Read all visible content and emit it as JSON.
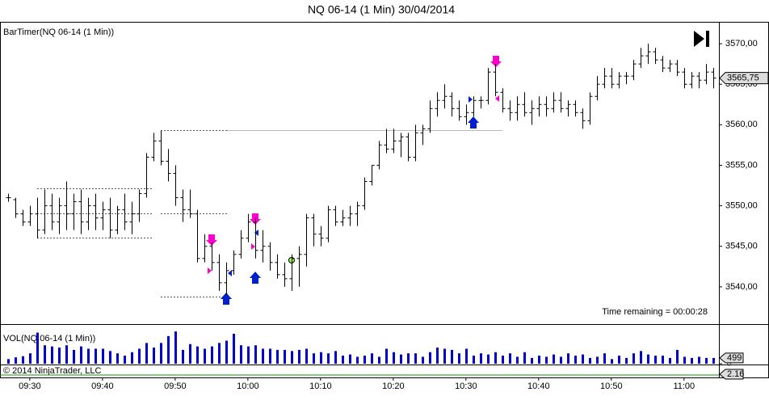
{
  "chart_data": {
    "type": "ohlc",
    "title": "NQ 06-14 (1 Min)  30/04/2014",
    "indicator_title": "BarTimer(NQ 06-14 (1 Min))",
    "annotation": "Time remaining = 00:00:28",
    "volume_title": "VOL(NQ 06-14 (1 Min))",
    "copyright": "© 2014 NinjaTrader, LLC",
    "x": [
      567,
      568,
      569,
      570,
      571,
      572,
      573,
      574,
      575,
      576,
      577,
      578,
      579,
      580,
      581,
      582,
      583,
      584,
      585,
      586,
      587,
      588,
      589,
      590,
      591,
      592,
      593,
      594,
      595,
      596,
      597,
      598,
      599,
      600,
      601,
      602,
      603,
      604,
      605,
      606,
      607,
      608,
      609,
      610,
      611,
      612,
      613,
      614,
      615,
      616,
      617,
      618,
      619,
      620,
      621,
      622,
      623,
      624,
      625,
      626,
      627,
      628,
      629,
      630,
      631,
      632,
      633,
      634,
      635,
      636,
      637,
      638,
      639,
      640,
      641,
      642,
      643,
      644,
      645,
      646,
      647,
      648,
      649,
      650,
      651,
      652,
      653,
      654,
      655,
      656,
      657,
      658,
      659,
      660,
      661,
      662,
      663,
      664
    ],
    "open": [
      3551,
      3550.75,
      3549,
      3548,
      3549,
      3547,
      3550,
      3548,
      3550,
      3549,
      3550.5,
      3548,
      3550,
      3548.5,
      3549.5,
      3547,
      3549.5,
      3548,
      3549,
      3551.5,
      3556,
      3558,
      3555.5,
      3554,
      3551,
      3549.5,
      3549,
      3543.5,
      3545,
      3543,
      3540.5,
      3542,
      3544,
      3546,
      3548,
      3544.5,
      3545,
      3543,
      3541.5,
      3541,
      3543.5,
      3544,
      3548.5,
      3546.5,
      3546,
      3549.5,
      3548,
      3548.5,
      3549,
      3550,
      3553,
      3555,
      3557.5,
      3557,
      3558,
      3558.5,
      3556,
      3559,
      3559.5,
      3562,
      3563,
      3563.5,
      3562,
      3561,
      3561.5,
      3563,
      3563,
      3566.5,
      3564,
      3562,
      3561.5,
      3562.5,
      3561.5,
      3562,
      3562.5,
      3562,
      3563,
      3562,
      3562.5,
      3561.5,
      3560.5,
      3563.5,
      3565,
      3566,
      3565,
      3566,
      3566,
      3567.5,
      3568.5,
      3569,
      3568,
      3567,
      3567.5,
      3566.5,
      3565,
      3566,
      3565.5,
      3566.5
    ],
    "high": [
      3551.5,
      3551,
      3549.5,
      3550,
      3551,
      3552,
      3551.5,
      3551,
      3553,
      3551.5,
      3552,
      3551,
      3551.5,
      3550.5,
      3551,
      3550,
      3551.5,
      3550.5,
      3552,
      3556.5,
      3559,
      3559.25,
      3557,
      3555,
      3552,
      3552,
      3549.5,
      3546.5,
      3545.5,
      3544,
      3543,
      3544.5,
      3547,
      3549,
      3548.5,
      3547,
      3545.5,
      3544,
      3543,
      3544,
      3545,
      3549,
      3549,
      3547.5,
      3550,
      3550,
      3549.5,
      3550,
      3550.5,
      3553.5,
      3555,
      3558,
      3559.5,
      3559.5,
      3559,
      3559,
      3560,
      3560,
      3563,
      3564,
      3565,
      3564,
      3563,
      3562.5,
      3563.5,
      3563.5,
      3567,
      3567.5,
      3564.5,
      3563,
      3563.5,
      3564,
      3563,
      3563.5,
      3563.5,
      3564,
      3564,
      3563,
      3563,
      3562,
      3564,
      3566,
      3567,
      3567,
      3566.5,
      3566.5,
      3568,
      3569.5,
      3570,
      3569.5,
      3568.5,
      3568,
      3568,
      3567,
      3566.5,
      3566.5,
      3567.5,
      3567
    ],
    "low": [
      3550.5,
      3548.5,
      3547.5,
      3547.5,
      3546,
      3546.5,
      3547,
      3546.5,
      3547,
      3547,
      3546.5,
      3547,
      3547,
      3547,
      3546,
      3546.5,
      3547,
      3546.5,
      3548,
      3551,
      3555.5,
      3555,
      3553,
      3550,
      3548,
      3548.5,
      3543,
      3543,
      3542,
      3539.5,
      3539,
      3541.5,
      3543.5,
      3545.5,
      3543.5,
      3543,
      3542,
      3541,
      3540,
      3539.5,
      3540,
      3542.5,
      3545,
      3545,
      3545.5,
      3547.5,
      3547.5,
      3547.5,
      3547.5,
      3549.5,
      3552.5,
      3554.5,
      3556.5,
      3556.5,
      3556,
      3555.5,
      3555.5,
      3557.5,
      3559,
      3561,
      3562,
      3561,
      3560.5,
      3560,
      3561,
      3562,
      3562.5,
      3563.5,
      3561.5,
      3560.5,
      3560.5,
      3561,
      3560,
      3561,
      3561,
      3561.5,
      3561.5,
      3561,
      3561,
      3559.5,
      3560,
      3563,
      3564.5,
      3564.5,
      3564.5,
      3565,
      3565.5,
      3567,
      3567.5,
      3567.5,
      3566.5,
      3566.5,
      3566,
      3564.5,
      3564.5,
      3564.5,
      3565,
      3564.5
    ],
    "close": [
      3551,
      3549,
      3548,
      3549,
      3547,
      3550,
      3548,
      3550,
      3549,
      3550.5,
      3548,
      3550,
      3548.5,
      3549.5,
      3547,
      3549.5,
      3548,
      3549,
      3551.5,
      3556,
      3558,
      3555.5,
      3554,
      3551,
      3549.5,
      3549,
      3543.5,
      3545,
      3543,
      3540.5,
      3542,
      3544,
      3546,
      3548,
      3544.5,
      3545,
      3543,
      3541.5,
      3541,
      3543.5,
      3544,
      3548.5,
      3546.5,
      3546,
      3549.5,
      3548,
      3548.5,
      3549,
      3550,
      3553,
      3555,
      3557.5,
      3557,
      3558,
      3558.5,
      3556,
      3559,
      3559.5,
      3562,
      3563,
      3563.5,
      3562,
      3561,
      3561.5,
      3563,
      3563,
      3566.5,
      3564,
      3562,
      3561.5,
      3562.5,
      3561.5,
      3562,
      3562.5,
      3562,
      3563,
      3562,
      3562.5,
      3561.5,
      3560.5,
      3563.5,
      3565,
      3566,
      3565,
      3566,
      3566,
      3567.5,
      3568.5,
      3569,
      3568,
      3567,
      3567.5,
      3566.5,
      3565,
      3566,
      3565.5,
      3566.5,
      3565.75
    ],
    "volume": [
      400,
      550,
      650,
      900,
      2700,
      1600,
      1500,
      1400,
      1600,
      1200,
      1500,
      1300,
      1300,
      1300,
      1100,
      900,
      700,
      1000,
      1300,
      1800,
      1400,
      1800,
      2400,
      2800,
      1200,
      1700,
      1500,
      1300,
      1500,
      1800,
      2000,
      2600,
      1600,
      1500,
      1600,
      1300,
      1300,
      1200,
      1200,
      1100,
      1200,
      1300,
      900,
      1000,
      900,
      1100,
      700,
      800,
      600,
      700,
      900,
      600,
      1300,
      1000,
      800,
      900,
      900,
      600,
      1000,
      1400,
      1300,
      1200,
      900,
      1300,
      700,
      900,
      800,
      1000,
      700,
      900,
      600,
      1000,
      500,
      700,
      600,
      800,
      600,
      900,
      700,
      800,
      500,
      600,
      900,
      400,
      700,
      500,
      900,
      1100,
      800,
      700,
      700,
      500,
      1200,
      600,
      500,
      600,
      500,
      499
    ],
    "color": "#000000",
    "volume_color": "#0000cc",
    "xlim": [
      565.9,
      664.8
    ],
    "xticks": [
      {
        "value": 570,
        "label": "09:30"
      },
      {
        "value": 580,
        "label": "09:40"
      },
      {
        "value": 590,
        "label": "09:50"
      },
      {
        "value": 600,
        "label": "10:00"
      },
      {
        "value": 610,
        "label": "10:10"
      },
      {
        "value": 620,
        "label": "10:20"
      },
      {
        "value": 630,
        "label": "10:30"
      },
      {
        "value": 640,
        "label": "10:40"
      },
      {
        "value": 650,
        "label": "10:50"
      },
      {
        "value": 660,
        "label": "11:00"
      }
    ],
    "ylim": [
      3535.4,
      3572.6
    ],
    "yticks": [
      {
        "value": 3540,
        "label": "3540,00"
      },
      {
        "value": 3545,
        "label": "3545,00"
      },
      {
        "value": 3550,
        "label": "3550,00"
      },
      {
        "value": 3555,
        "label": "3555,00"
      },
      {
        "value": 3560,
        "label": "3560,00"
      },
      {
        "value": 3565,
        "label": "3565,00"
      },
      {
        "value": 3570,
        "label": "3570,00"
      }
    ],
    "last_price": {
      "value": 3565.75,
      "label": "3565,75"
    },
    "volume_ylim": [
      0,
      3300
    ],
    "volume_yticks": [
      0
    ],
    "indicator_value": 2.16
  }
}
